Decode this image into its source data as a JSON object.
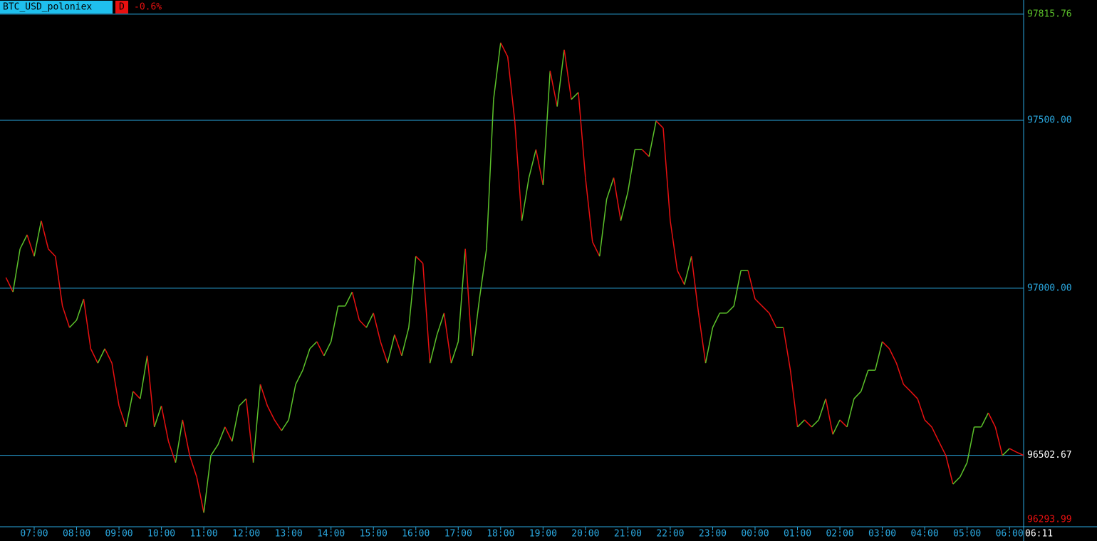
{
  "chart_data": {
    "type": "line",
    "title": "BTC_USD_poloniex",
    "timeframe": "D",
    "change": "-0.6%",
    "up_color": "#5cc22a",
    "down_color": "#e81010",
    "grid_color": "#2aa8e0",
    "high": 97815.76,
    "low": 96293.99,
    "ylim": [
      96290,
      97858
    ],
    "yticks": [
      {
        "value": 97500,
        "label": "97500.00"
      },
      {
        "value": 97000,
        "label": "97000.00"
      }
    ],
    "categories": [
      null,
      null,
      null,
      null,
      "07:00",
      null,
      null,
      null,
      null,
      null,
      "08:00",
      null,
      null,
      null,
      null,
      null,
      "09:00",
      null,
      null,
      null,
      null,
      null,
      "10:00",
      null,
      null,
      null,
      null,
      null,
      "11:00",
      null,
      null,
      null,
      null,
      null,
      "12:00",
      null,
      null,
      null,
      null,
      null,
      "13:00",
      null,
      null,
      null,
      null,
      null,
      "14:00",
      null,
      null,
      null,
      null,
      null,
      "15:00",
      null,
      null,
      null,
      null,
      null,
      "16:00",
      null,
      null,
      null,
      null,
      null,
      "17:00",
      null,
      null,
      null,
      null,
      null,
      "18:00",
      null,
      null,
      null,
      null,
      null,
      "19:00",
      null,
      null,
      null,
      null,
      null,
      "20:00",
      null,
      null,
      null,
      null,
      null,
      "21:00",
      null,
      null,
      null,
      null,
      null,
      "22:00",
      null,
      null,
      null,
      null,
      null,
      "23:00",
      null,
      null,
      null,
      null,
      null,
      "00:00",
      null,
      null,
      null,
      null,
      null,
      "01:00",
      null,
      null,
      null,
      null,
      null,
      "02:00",
      null,
      null,
      null,
      null,
      null,
      "03:00",
      null,
      null,
      null,
      null,
      null,
      "04:00",
      null,
      null,
      null,
      null,
      null,
      "05:00",
      null,
      null,
      null,
      null,
      null,
      "06:00",
      null,
      "06:11"
    ],
    "series": [
      {
        "name": "BTC_USD_poloniex",
        "values": [
          97032,
          96989,
          97117,
          97159,
          97095,
          97201,
          97117,
          97095,
          96947,
          96883,
          96905,
          96968,
          96820,
          96777,
          96820,
          96777,
          96650,
          96587,
          96693,
          96671,
          96799,
          96587,
          96650,
          96544,
          96481,
          96608,
          96502,
          96438,
          96332,
          96502,
          96534,
          96587,
          96544,
          96650,
          96671,
          96481,
          96714,
          96650,
          96608,
          96576,
          96608,
          96714,
          96756,
          96820,
          96841,
          96799,
          96841,
          96947,
          96947,
          96989,
          96905,
          96883,
          96926,
          96841,
          96777,
          96862,
          96799,
          96883,
          97095,
          97074,
          96777,
          96862,
          96926,
          96777,
          96841,
          97117,
          96799,
          96968,
          97117,
          97562,
          97731,
          97689,
          97498,
          97201,
          97329,
          97413,
          97307,
          97647,
          97541,
          97710,
          97562,
          97583,
          97329,
          97138,
          97095,
          97265,
          97329,
          97201,
          97286,
          97413,
          97413,
          97392,
          97498,
          97477,
          97201,
          97053,
          97011,
          97095,
          96926,
          96777,
          96883,
          96926,
          96926,
          96947,
          97053,
          97053,
          96968,
          96947,
          96926,
          96883,
          96883,
          96756,
          96587,
          96608,
          96587,
          96608,
          96671,
          96565,
          96608,
          96587,
          96671,
          96693,
          96756,
          96756,
          96841,
          96820,
          96777,
          96714,
          96693,
          96671,
          96608,
          96587,
          96544,
          96502,
          96417,
          96438,
          96481,
          96587,
          96587,
          96629,
          96587,
          96502,
          96523,
          96512,
          96502.67
        ]
      }
    ]
  }
}
